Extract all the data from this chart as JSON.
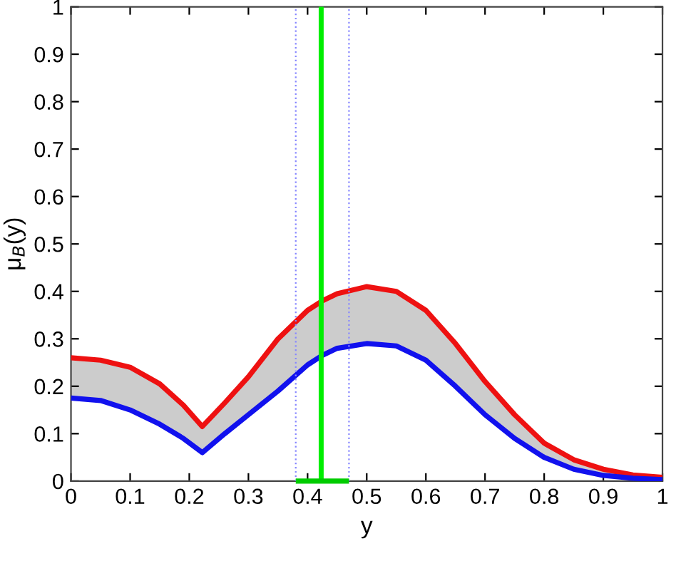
{
  "chart_data": {
    "type": "line",
    "xlabel": "y",
    "ylabel": "μ$_{B}$(y)",
    "x": [
      0,
      0.05,
      0.1,
      0.15,
      0.19,
      0.222,
      0.26,
      0.3,
      0.35,
      0.4,
      0.425,
      0.45,
      0.5,
      0.55,
      0.6,
      0.65,
      0.7,
      0.75,
      0.8,
      0.85,
      0.9,
      0.95,
      1
    ],
    "series": [
      {
        "color": "#ee1111",
        "values": [
          0.26,
          0.255,
          0.24,
          0.205,
          0.16,
          0.115,
          0.165,
          0.22,
          0.3,
          0.36,
          0.38,
          0.395,
          0.41,
          0.4,
          0.36,
          0.29,
          0.21,
          0.14,
          0.08,
          0.045,
          0.025,
          0.013,
          0.008
        ],
        "lower": [
          0.175,
          0.17,
          0.15,
          0.12,
          0.09,
          0.06,
          0.1,
          0.14,
          0.19,
          0.245,
          0.265,
          0.28,
          0.29,
          0.285,
          0.255,
          0.2,
          0.14,
          0.09,
          0.05,
          0.025,
          0.012,
          0.006,
          0.003
        ],
        "upper": [
          0.26,
          0.255,
          0.24,
          0.205,
          0.16,
          0.115,
          0.165,
          0.22,
          0.3,
          0.36,
          0.38,
          0.395,
          0.41,
          0.4,
          0.36,
          0.29,
          0.21,
          0.14,
          0.08,
          0.045,
          0.025,
          0.013,
          0.008
        ]
      },
      {
        "color": "#1111ee",
        "values": [
          0.175,
          0.17,
          0.15,
          0.12,
          0.09,
          0.06,
          0.1,
          0.14,
          0.19,
          0.245,
          0.265,
          0.28,
          0.29,
          0.285,
          0.255,
          0.2,
          0.14,
          0.09,
          0.05,
          0.025,
          0.012,
          0.006,
          0.003
        ]
      },
      {
        "color": "#00cc00",
        "x": [
          0.38,
          0.47
        ],
        "values": [
          0,
          0
        ]
      }
    ],
    "ref_lines": [
      {
        "axis": "x",
        "value": 0.38,
        "color": "#8888ff",
        "line_style": "dotted"
      },
      {
        "axis": "x",
        "value": 0.47,
        "color": "#8888ff",
        "line_style": "dotted"
      },
      {
        "axis": "x",
        "value": 0.423,
        "color": "#00ee00",
        "line_style": "solid"
      }
    ],
    "xlim": [
      0,
      1
    ],
    "ylim": [
      0,
      1
    ],
    "xticks": [
      0,
      0.1,
      0.2,
      0.3,
      0.4,
      0.5,
      0.6,
      0.7,
      0.8,
      0.9,
      1
    ],
    "yticks": [
      0,
      0.1,
      0.2,
      0.3,
      0.4,
      0.5,
      0.6,
      0.7,
      0.8,
      0.9,
      1
    ],
    "grid": false,
    "marker": "none",
    "line_style": "solid"
  }
}
